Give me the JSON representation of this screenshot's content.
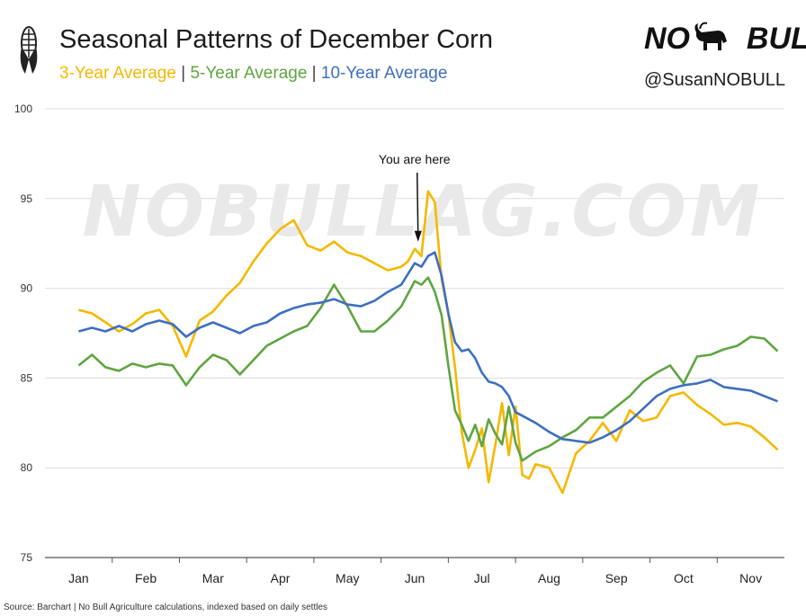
{
  "header": {
    "title": "Seasonal Patterns of December Corn",
    "subtitle_parts": [
      {
        "text": "3-Year Average",
        "color": "#f5b800"
      },
      {
        "text": " | ",
        "color": "#444444"
      },
      {
        "text": "5-Year Average",
        "color": "#5fa541"
      },
      {
        "text": " | ",
        "color": "#444444"
      },
      {
        "text": "10-Year Average",
        "color": "#3d6fbf"
      }
    ],
    "logo_left": "NO",
    "logo_right": "BULL",
    "handle": "@SusanNOBULL",
    "icons": {
      "left": "corn-icon",
      "right": "bull-icon"
    }
  },
  "watermark": "NOBULLAG.COM",
  "source": "Source: Barchart | No Bull Agriculture calculations, indexed based on daily settles",
  "chart_data": {
    "type": "line",
    "x_categories": [
      "Jan",
      "Feb",
      "Mar",
      "Apr",
      "May",
      "Jun",
      "Jul",
      "Aug",
      "Sep",
      "Oct",
      "Nov"
    ],
    "ylim": [
      75,
      100
    ],
    "yticks": [
      75,
      80,
      85,
      90,
      95,
      100
    ],
    "grid": true,
    "annotation": {
      "text": "You are here",
      "x": 5.05,
      "y": 92.6
    },
    "series": [
      {
        "name": "3-Year Average",
        "color": "#f5b800",
        "x": [
          0,
          0.2,
          0.4,
          0.6,
          0.8,
          1.0,
          1.2,
          1.4,
          1.6,
          1.8,
          2.0,
          2.2,
          2.4,
          2.6,
          2.8,
          3.0,
          3.2,
          3.4,
          3.6,
          3.8,
          4.0,
          4.2,
          4.4,
          4.6,
          4.8,
          4.9,
          5.0,
          5.1,
          5.2,
          5.3,
          5.4,
          5.5,
          5.6,
          5.7,
          5.8,
          5.9,
          6.0,
          6.1,
          6.2,
          6.3,
          6.4,
          6.5,
          6.6,
          6.7,
          6.8,
          6.9,
          7.0,
          7.2,
          7.4,
          7.6,
          7.8,
          8.0,
          8.2,
          8.4,
          8.6,
          8.8,
          9.0,
          9.2,
          9.4,
          9.6,
          9.8,
          10.0,
          10.2,
          10.4
        ],
        "values": [
          88.8,
          88.6,
          88.1,
          87.6,
          88.0,
          88.6,
          88.8,
          87.9,
          86.2,
          88.2,
          88.7,
          89.6,
          90.3,
          91.5,
          92.5,
          93.3,
          93.8,
          92.4,
          92.1,
          92.6,
          92.0,
          91.8,
          91.4,
          91.0,
          91.2,
          91.5,
          92.2,
          91.8,
          95.4,
          94.8,
          90.5,
          88.6,
          85.6,
          82.0,
          80.0,
          81.0,
          82.2,
          79.2,
          81.3,
          83.6,
          80.7,
          83.4,
          79.6,
          79.4,
          80.2,
          80.1,
          80.0,
          78.6,
          80.8,
          81.5,
          82.5,
          81.5,
          83.2,
          82.6,
          82.8,
          84.0,
          84.2,
          83.5,
          83.0,
          82.4,
          82.5,
          82.3,
          81.7,
          81.0
        ]
      },
      {
        "name": "5-Year Average",
        "color": "#5fa541",
        "x": [
          0,
          0.2,
          0.4,
          0.6,
          0.8,
          1.0,
          1.2,
          1.4,
          1.6,
          1.8,
          2.0,
          2.2,
          2.4,
          2.6,
          2.8,
          3.0,
          3.2,
          3.4,
          3.6,
          3.8,
          4.0,
          4.2,
          4.4,
          4.6,
          4.8,
          5.0,
          5.1,
          5.2,
          5.3,
          5.4,
          5.5,
          5.6,
          5.7,
          5.8,
          5.9,
          6.0,
          6.1,
          6.2,
          6.3,
          6.4,
          6.5,
          6.6,
          6.8,
          7.0,
          7.2,
          7.4,
          7.6,
          7.8,
          8.0,
          8.2,
          8.4,
          8.6,
          8.8,
          9.0,
          9.2,
          9.4,
          9.6,
          9.8,
          10.0,
          10.2,
          10.4
        ],
        "values": [
          85.7,
          86.3,
          85.6,
          85.4,
          85.8,
          85.6,
          85.8,
          85.7,
          84.6,
          85.6,
          86.3,
          86.0,
          85.2,
          86.0,
          86.8,
          87.2,
          87.6,
          87.9,
          88.9,
          90.2,
          89.0,
          87.6,
          87.6,
          88.2,
          89.0,
          90.4,
          90.2,
          90.6,
          89.8,
          88.5,
          85.7,
          83.2,
          82.4,
          81.5,
          82.4,
          81.2,
          82.7,
          81.9,
          81.3,
          83.4,
          81.4,
          80.4,
          80.9,
          81.2,
          81.7,
          82.1,
          82.8,
          82.8,
          83.4,
          84.0,
          84.8,
          85.3,
          85.7,
          84.7,
          86.2,
          86.3,
          86.6,
          86.8,
          87.3,
          87.2,
          86.5
        ]
      },
      {
        "name": "10-Year Average",
        "color": "#3d6fbf",
        "x": [
          0,
          0.2,
          0.4,
          0.6,
          0.8,
          1.0,
          1.2,
          1.4,
          1.6,
          1.8,
          2.0,
          2.2,
          2.4,
          2.6,
          2.8,
          3.0,
          3.2,
          3.4,
          3.6,
          3.8,
          4.0,
          4.2,
          4.4,
          4.6,
          4.8,
          5.0,
          5.1,
          5.2,
          5.3,
          5.4,
          5.5,
          5.6,
          5.7,
          5.8,
          5.9,
          6.0,
          6.1,
          6.2,
          6.3,
          6.4,
          6.5,
          6.6,
          6.8,
          7.0,
          7.2,
          7.4,
          7.6,
          7.8,
          8.0,
          8.2,
          8.4,
          8.6,
          8.8,
          9.0,
          9.2,
          9.4,
          9.6,
          9.8,
          10.0,
          10.2,
          10.4
        ],
        "values": [
          87.6,
          87.8,
          87.6,
          87.9,
          87.6,
          88.0,
          88.2,
          88.0,
          87.3,
          87.8,
          88.1,
          87.8,
          87.5,
          87.9,
          88.1,
          88.6,
          88.9,
          89.1,
          89.2,
          89.4,
          89.1,
          89.0,
          89.3,
          89.8,
          90.2,
          91.4,
          91.2,
          91.8,
          92.0,
          90.7,
          88.6,
          87.0,
          86.5,
          86.6,
          86.1,
          85.3,
          84.8,
          84.7,
          84.5,
          84.0,
          83.1,
          82.9,
          82.5,
          82.0,
          81.6,
          81.5,
          81.4,
          81.7,
          82.1,
          82.6,
          83.3,
          84.0,
          84.4,
          84.6,
          84.7,
          84.9,
          84.5,
          84.4,
          84.3,
          84.0,
          83.7
        ]
      }
    ]
  }
}
